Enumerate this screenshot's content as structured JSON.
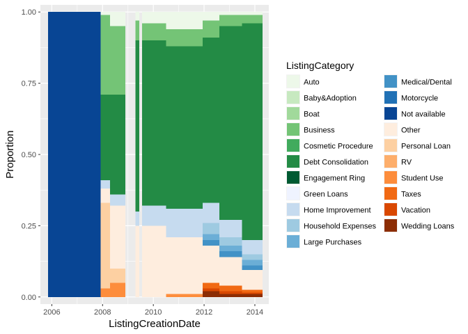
{
  "chart_data": {
    "type": "area",
    "stacking": "fill",
    "xlabel": "ListingCreationDate",
    "ylabel": "Proportion",
    "xlim": [
      2005.55,
      2014.55
    ],
    "ylim": [
      -0.025,
      1.025
    ],
    "x_ticks": [
      2006,
      2008,
      2010,
      2012,
      2014
    ],
    "x_tick_labels": [
      "2006",
      "2008",
      "2010",
      "2012",
      "2014"
    ],
    "y_ticks": [
      0,
      0.25,
      0.5,
      0.75,
      1.0
    ],
    "y_tick_labels": [
      "0.00",
      "0.25",
      "0.50",
      "0.75",
      "1.00"
    ],
    "grid": true,
    "legend": {
      "title": "ListingCategory",
      "placement": "right",
      "columns": 2
    },
    "stack_order": [
      "Wedding Loans",
      "Vacation",
      "Taxes",
      "Student Use",
      "RV",
      "Personal Loan",
      "Other",
      "Not available",
      "Motorcycle",
      "Medical/Dental",
      "Large Purchases",
      "Household Expenses",
      "Home Improvement",
      "Green Loans",
      "Engagement Ring",
      "Debt Consolidation",
      "Cosmetic Procedure",
      "Business",
      "Boat",
      "Baby&Adoption",
      "Auto"
    ],
    "series": [
      {
        "name": "Auto",
        "color": "#EDF8E9"
      },
      {
        "name": "Baby&Adoption",
        "color": "#C7E9C0"
      },
      {
        "name": "Boat",
        "color": "#A1D99B"
      },
      {
        "name": "Business",
        "color": "#74C476"
      },
      {
        "name": "Cosmetic Procedure",
        "color": "#41AB5D"
      },
      {
        "name": "Debt Consolidation",
        "color": "#238B45"
      },
      {
        "name": "Engagement Ring",
        "color": "#005A32"
      },
      {
        "name": "Green Loans",
        "color": "#EFF3FF"
      },
      {
        "name": "Home Improvement",
        "color": "#C6DBEF"
      },
      {
        "name": "Household Expenses",
        "color": "#9ECAE1"
      },
      {
        "name": "Large Purchases",
        "color": "#6BAED6"
      },
      {
        "name": "Medical/Dental",
        "color": "#4292C6"
      },
      {
        "name": "Motorcycle",
        "color": "#2171B5"
      },
      {
        "name": "Not available",
        "color": "#084594"
      },
      {
        "name": "Other",
        "color": "#FEEDDE"
      },
      {
        "name": "Personal Loan",
        "color": "#FDD0A2"
      },
      {
        "name": "RV",
        "color": "#FDAE6B"
      },
      {
        "name": "Student Use",
        "color": "#FD8D3C"
      },
      {
        "name": "Taxes",
        "color": "#F16913"
      },
      {
        "name": "Vacation",
        "color": "#D94801"
      },
      {
        "name": "Wedding Loans",
        "color": "#8C2D04"
      }
    ],
    "periods": [
      {
        "from": 2005.85,
        "to": 2007.92,
        "shares": {
          "Not available": 1.0
        }
      },
      {
        "from": 2007.92,
        "to": 2008.3,
        "shares": {
          "Student Use": 0.03,
          "Personal Loan": 0.3,
          "Other": 0.05,
          "Home Improvement": 0.03,
          "Debt Consolidation": 0.3,
          "Business": 0.28,
          "Auto": 0.01
        }
      },
      {
        "from": 2008.3,
        "to": 2008.9,
        "shares": {
          "Student Use": 0.05,
          "Personal Loan": 0.05,
          "Other": 0.22,
          "Home Improvement": 0.04,
          "Debt Consolidation": 0.35,
          "Business": 0.24,
          "Auto": 0.05
        }
      },
      {
        "from": 2009.3,
        "to": 2009.45,
        "shares": {
          "Other": 0.25,
          "Home Improvement": 0.05,
          "Debt Consolidation": 0.6,
          "Business": 0.07,
          "Auto": 0.03
        }
      },
      {
        "from": 2009.55,
        "to": 2010.5,
        "shares": {
          "Other": 0.25,
          "Home Improvement": 0.07,
          "Debt Consolidation": 0.58,
          "Business": 0.06,
          "Auto": 0.04
        }
      },
      {
        "from": 2010.5,
        "to": 2011.95,
        "shares": {
          "Student Use": 0.01,
          "Other": 0.2,
          "Home Improvement": 0.1,
          "Debt Consolidation": 0.57,
          "Business": 0.06,
          "Auto": 0.06
        }
      },
      {
        "from": 2011.95,
        "to": 2012.6,
        "shares": {
          "Wedding Loans": 0.02,
          "Vacation": 0.01,
          "Taxes": 0.02,
          "Other": 0.13,
          "Medical/Dental": 0.02,
          "Large Purchases": 0.02,
          "Household Expenses": 0.04,
          "Home Improvement": 0.07,
          "Debt Consolidation": 0.58,
          "Business": 0.06,
          "Auto": 0.03
        }
      },
      {
        "from": 2012.6,
        "to": 2013.5,
        "shares": {
          "Wedding Loans": 0.01,
          "Vacation": 0.01,
          "Taxes": 0.02,
          "Other": 0.1,
          "Medical/Dental": 0.02,
          "Large Purchases": 0.02,
          "Household Expenses": 0.03,
          "Home Improvement": 0.06,
          "Debt Consolidation": 0.68,
          "Business": 0.04,
          "Auto": 0.01
        }
      },
      {
        "from": 2013.5,
        "to": 2014.3,
        "shares": {
          "Wedding Loans": 0.01,
          "Vacation": 0.005,
          "Taxes": 0.01,
          "Other": 0.07,
          "Medical/Dental": 0.015,
          "Large Purchases": 0.02,
          "Household Expenses": 0.02,
          "Home Improvement": 0.05,
          "Debt Consolidation": 0.76,
          "Business": 0.03,
          "Auto": 0.01
        }
      }
    ]
  }
}
